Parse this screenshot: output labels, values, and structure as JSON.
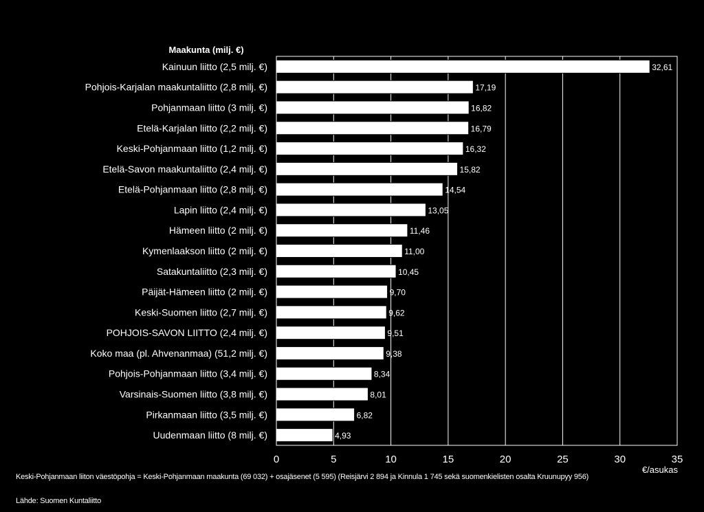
{
  "chart_data": {
    "type": "bar",
    "orientation": "horizontal",
    "category_heading": "Maakunta (milj. €)",
    "categories": [
      "Kainuun liitto (2,5 milj. €)",
      "Pohjois-Karjalan maakuntaliitto (2,8 milj. €)",
      "Pohjanmaan liitto (3 milj. €)",
      "Etelä-Karjalan liitto (2,2 milj. €)",
      "Keski-Pohjanmaan liitto (1,2 milj. €)",
      "Etelä-Savon maakuntaliitto (2,4 milj. €)",
      "Etelä-Pohjanmaan liitto (2,8 milj. €)",
      "Lapin liitto (2,4 milj. €)",
      "Hämeen liitto (2 milj. €)",
      "Kymenlaakson liitto (2 milj. €)",
      "Satakuntaliitto (2,3 milj. €)",
      "Päijät-Hämeen liitto (2 milj. €)",
      "Keski-Suomen liitto (2,7 milj. €)",
      "POHJOIS-SAVON LIITTO (2,4 milj. €)",
      "Koko maa (pl. Ahvenanmaa) (51,2 milj. €)",
      "Pohjois-Pohjanmaan liitto (3,4 milj. €)",
      "Varsinais-Suomen liitto (3,8 milj. €)",
      "Pirkanmaan liitto (3,5 milj. €)",
      "Uudenmaan liitto (8 milj. €)"
    ],
    "values": [
      32.61,
      17.19,
      16.82,
      16.79,
      16.32,
      15.82,
      14.54,
      13.05,
      11.46,
      11.0,
      10.45,
      9.7,
      9.62,
      9.51,
      9.38,
      8.34,
      8.01,
      6.82,
      4.93
    ],
    "value_labels": [
      "32,61",
      "17,19",
      "16,82",
      "16,79",
      "16,32",
      "15,82",
      "14,54",
      "13,05",
      "11,46",
      "11,00",
      "10,45",
      "9,70",
      "9,62",
      "9,51",
      "9,38",
      "8,34",
      "8,01",
      "6,82",
      "4,93"
    ],
    "xlabel": "€/asukas",
    "xlim": [
      0,
      35
    ],
    "xticks": [
      0,
      5,
      10,
      15,
      20,
      25,
      30,
      35
    ],
    "grid": true,
    "legend": "none",
    "colors": {
      "background": "#000000",
      "bar_fill": "#ffffff",
      "bar_stroke": "#000000",
      "plot_border": "#ffffff",
      "gridlines": "#ffffff",
      "text": "#ffffff"
    }
  },
  "footnote": "Keski-Pohjanmaan liiton väestöpohja = Keski-Pohjanmaan maakunta (69 032) + osajäsenet (5 595) (Reisjärvi 2 894 ja Kinnula 1 745 sekä suomenkielisten osalta Kruunupyy 956)",
  "source": "Lähde: Suomen Kuntaliitto"
}
